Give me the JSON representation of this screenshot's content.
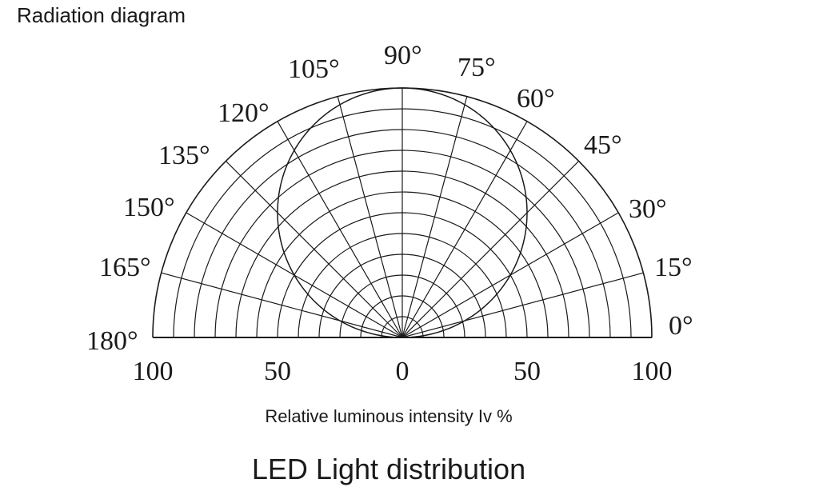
{
  "header": {
    "title": "Radiation diagram"
  },
  "chart_data": {
    "type": "polar",
    "title": "LED Light distribution",
    "subtitle": "Radiation diagram",
    "xlabel": "Relative luminous intensity Iv %",
    "ylabel": "",
    "angle_range": [
      0,
      180
    ],
    "angle_step": 15,
    "angle_labels": [
      "0°",
      "15°",
      "30°",
      "45°",
      "60°",
      "75°",
      "90°",
      "105°",
      "120°",
      "135°",
      "150°",
      "165°",
      "180°"
    ],
    "radial_range": [
      0,
      100
    ],
    "radial_rings": 12,
    "radial_tick_labels": [
      "100",
      "50",
      "0",
      "50",
      "100"
    ],
    "grid": true,
    "legend": null,
    "series": [
      {
        "name": "Relative luminous intensity",
        "angles_deg": [
          0,
          15,
          30,
          45,
          60,
          75,
          90,
          105,
          120,
          135,
          150,
          165,
          180
        ],
        "values_pct": [
          0,
          25.9,
          50,
          70.7,
          86.6,
          96.6,
          100,
          96.6,
          86.6,
          70.7,
          50,
          25.9,
          0
        ]
      }
    ]
  },
  "colors": {
    "line": "#1a1a1a",
    "background": "#ffffff"
  }
}
